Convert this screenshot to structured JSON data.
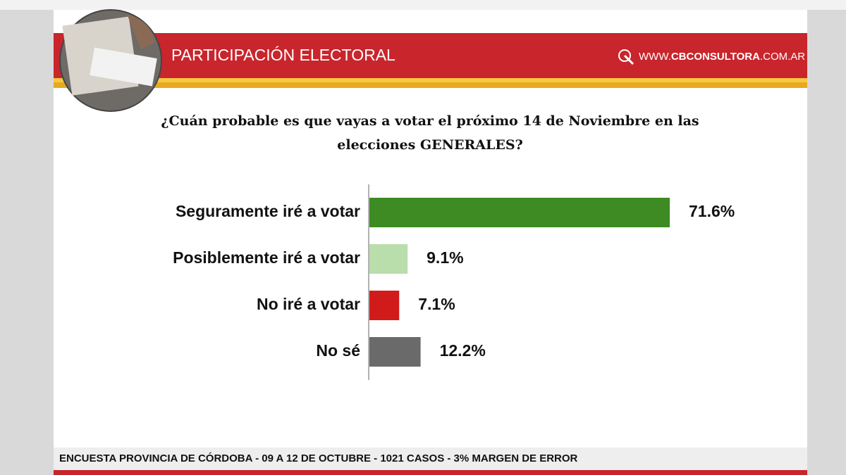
{
  "header": {
    "title": "PARTICIPACIÓN ELECTORAL",
    "website": {
      "prefix": "WWW.",
      "name": "CBCONSULTORA",
      "suffix": ".COM.AR"
    }
  },
  "chart_data": {
    "type": "bar",
    "orientation": "horizontal",
    "title": "¿Cuán probable es que vayas a votar el próximo 14 de Noviembre en las elecciones GENERALES?",
    "categories": [
      "Seguramente iré a votar",
      "Posiblemente iré a votar",
      "No iré a votar",
      "No sé"
    ],
    "values": [
      71.6,
      9.1,
      7.1,
      12.2
    ],
    "value_labels": [
      "71.6%",
      "9.1%",
      "7.1%",
      "12.2%"
    ],
    "colors": [
      "#3e8b24",
      "#b9ddab",
      "#d11b1b",
      "#6a6a6a"
    ]
  },
  "footer": "ENCUESTA PROVINCIA DE CÓRDOBA - 09 A 12 DE OCTUBRE - 1021 CASOS - 3% MARGEN DE ERROR"
}
